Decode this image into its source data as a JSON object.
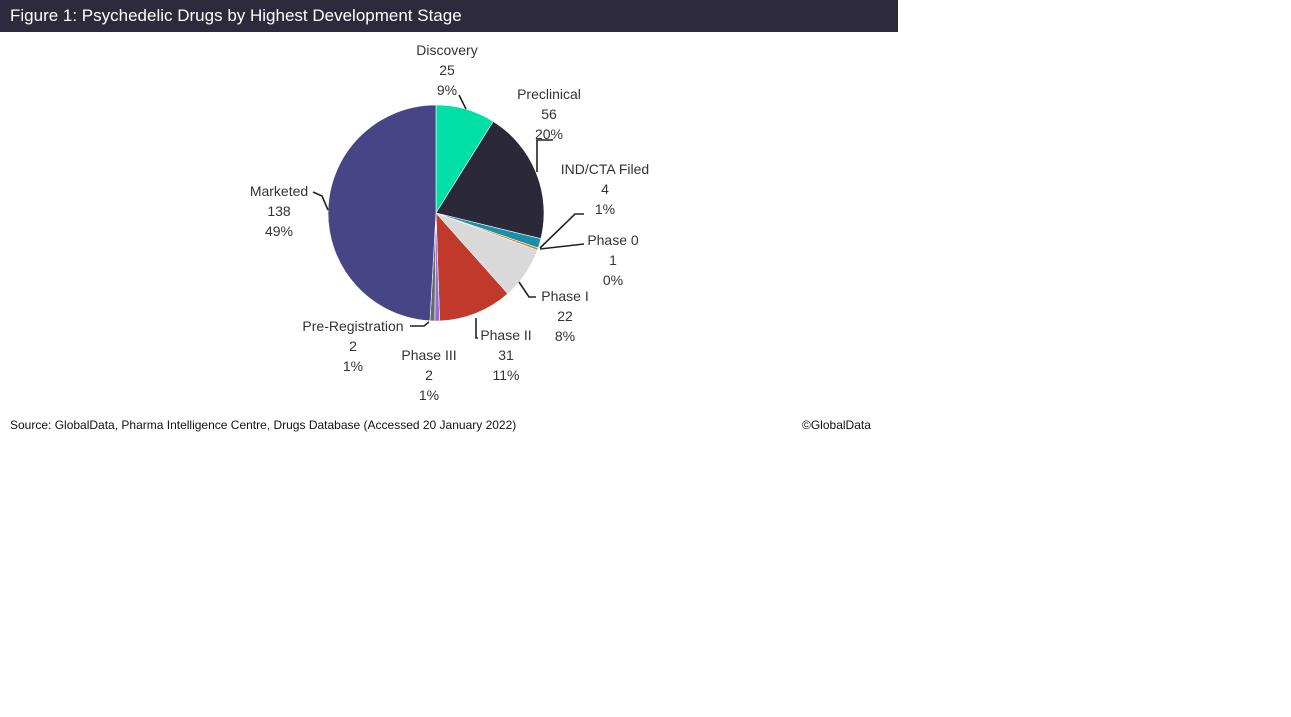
{
  "figure": {
    "title": "Figure 1: Psychedelic Drugs by Highest Development Stage",
    "source": "Source: GlobalData, Pharma Intelligence Centre, Drugs Database (Accessed 20 January 2022)",
    "copyright": "©GlobalData",
    "title_bar_color": "#2d2a3d"
  },
  "chart_data": {
    "type": "pie",
    "title": "Figure 1: Psychedelic Drugs by Highest Development Stage",
    "start": "12 o'clock, clockwise",
    "slices": [
      {
        "label": "Discovery",
        "value": 25,
        "percent": "9%",
        "color": "#00e0a6"
      },
      {
        "label": "Preclinical",
        "value": 56,
        "percent": "20%",
        "color": "#2b2838"
      },
      {
        "label": "IND/CTA Filed",
        "value": 4,
        "percent": "1%",
        "color": "#1a8fa8"
      },
      {
        "label": "Phase 0",
        "value": 1,
        "percent": "0%",
        "color": "#e07a2e"
      },
      {
        "label": "Phase I",
        "value": 22,
        "percent": "8%",
        "color": "#d9d9d9"
      },
      {
        "label": "Phase II",
        "value": 31,
        "percent": "11%",
        "color": "#c0392b"
      },
      {
        "label": "Phase III",
        "value": 2,
        "percent": "1%",
        "color": "#8a6fd8"
      },
      {
        "label": "Pre-Registration",
        "value": 2,
        "percent": "1%",
        "color": "#6a6a6a"
      },
      {
        "label": "Marketed",
        "value": 138,
        "percent": "49%",
        "color": "#474585"
      }
    ]
  }
}
